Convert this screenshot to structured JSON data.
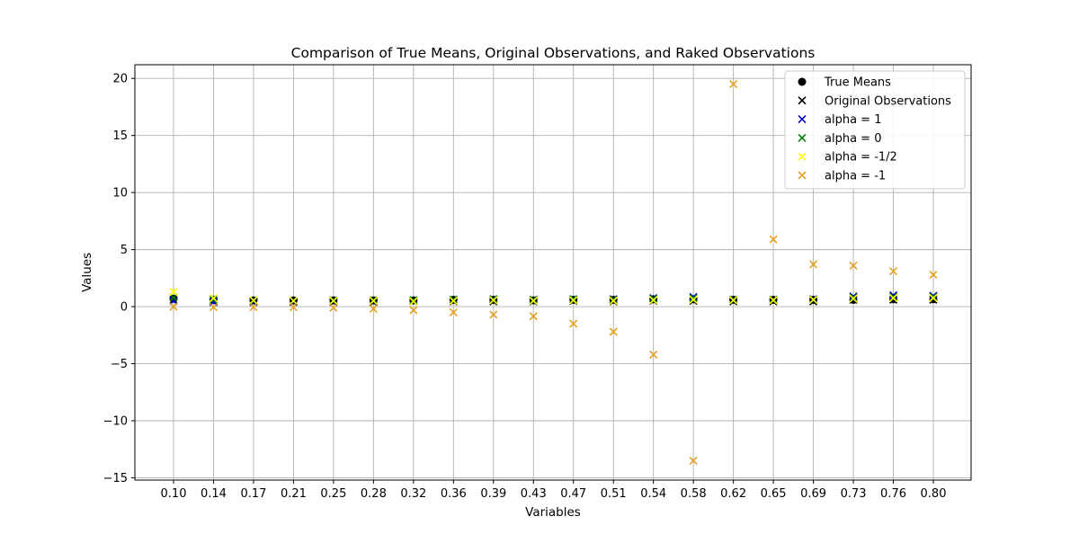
{
  "chart_data": {
    "type": "scatter",
    "title": "Comparison of True Means, Original Observations, and Raked Observations",
    "xlabel": "Variables",
    "ylabel": "Values",
    "ylim": [
      -15.2,
      21.2
    ],
    "grid": true,
    "legend_position": "top-right",
    "categories": [
      "0.10",
      "0.14",
      "0.17",
      "0.21",
      "0.25",
      "0.28",
      "0.32",
      "0.36",
      "0.39",
      "0.43",
      "0.47",
      "0.51",
      "0.54",
      "0.58",
      "0.62",
      "0.65",
      "0.69",
      "0.73",
      "0.76",
      "0.80"
    ],
    "y_ticks": [
      -15,
      -10,
      -5,
      0,
      5,
      10,
      15,
      20
    ],
    "y_tick_labels": [
      "−15",
      "−10",
      "−5",
      "0",
      "5",
      "10",
      "15",
      "20"
    ],
    "series": [
      {
        "name": "True Means",
        "marker": "circle",
        "color": "#000000",
        "values": [
          0.7,
          0.6,
          0.55,
          0.55,
          0.55,
          0.55,
          0.55,
          0.6,
          0.6,
          0.55,
          0.6,
          0.6,
          0.65,
          0.65,
          0.6,
          0.6,
          0.6,
          0.6,
          0.65,
          0.65
        ]
      },
      {
        "name": "Original Observations",
        "marker": "x",
        "color": "#000000",
        "values": [
          0.6,
          0.45,
          0.4,
          0.4,
          0.4,
          0.4,
          0.45,
          0.45,
          0.45,
          0.45,
          0.5,
          0.45,
          0.5,
          0.5,
          0.45,
          0.45,
          0.45,
          0.6,
          0.6,
          0.6
        ]
      },
      {
        "name": "alpha = 1",
        "marker": "x",
        "color": "#0000cc",
        "values": [
          0.5,
          0.4,
          0.45,
          0.45,
          0.5,
          0.5,
          0.55,
          0.6,
          0.65,
          0.6,
          0.65,
          0.65,
          0.75,
          0.85,
          0.6,
          0.6,
          0.65,
          0.9,
          1.0,
          0.95
        ]
      },
      {
        "name": "alpha = 0",
        "marker": "x",
        "color": "#008000",
        "values": [
          0.8,
          0.6,
          0.5,
          0.5,
          0.55,
          0.55,
          0.55,
          0.6,
          0.65,
          0.6,
          0.65,
          0.6,
          0.7,
          0.75,
          0.6,
          0.6,
          0.6,
          0.8,
          0.85,
          0.85
        ]
      },
      {
        "name": "alpha = -1/2",
        "marker": "x",
        "color": "#ffff00",
        "values": [
          1.3,
          0.75,
          0.55,
          0.5,
          0.5,
          0.5,
          0.45,
          0.5,
          0.55,
          0.5,
          0.55,
          0.5,
          0.55,
          0.6,
          0.55,
          0.55,
          0.6,
          0.7,
          0.75,
          0.75
        ]
      },
      {
        "name": "alpha = -1",
        "marker": "x",
        "color": "#e5a020",
        "values": [
          0.0,
          -0.05,
          -0.05,
          -0.05,
          -0.1,
          -0.2,
          -0.3,
          -0.5,
          -0.7,
          -0.85,
          -1.5,
          -2.2,
          -4.2,
          -13.5,
          19.5,
          5.9,
          3.7,
          3.6,
          3.1,
          2.8
        ]
      }
    ]
  }
}
